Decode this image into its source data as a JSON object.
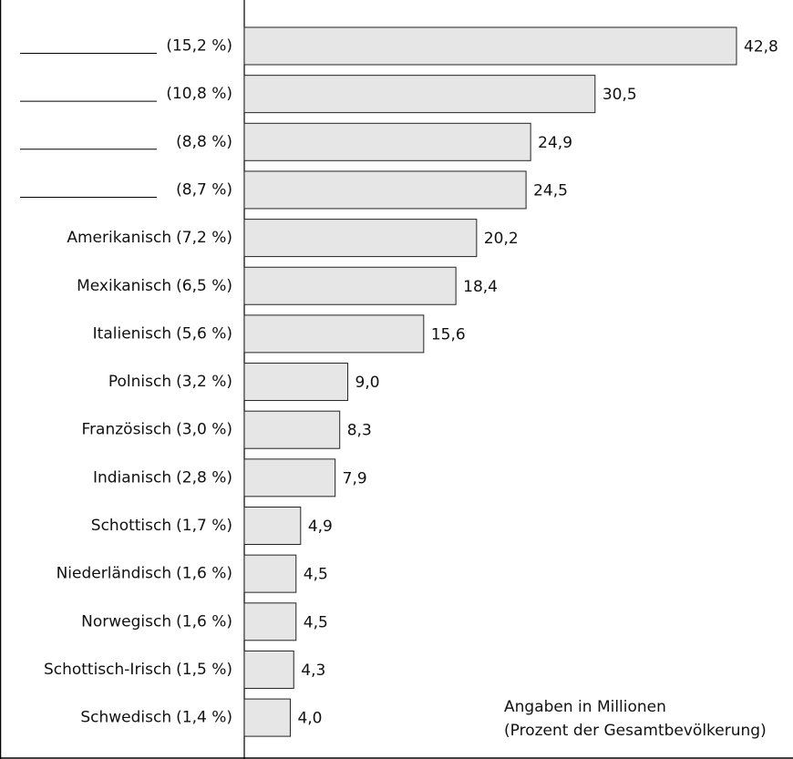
{
  "chart_data": {
    "type": "bar",
    "orientation": "horizontal",
    "color": "#e6e6e6",
    "names": [
      null,
      null,
      null,
      null,
      "Amerikanisch",
      "Mexikanisch",
      "Italienisch",
      "Polnisch",
      "Französisch",
      "Indianisch",
      "Schottisch",
      "Niederländisch",
      "Norwegisch",
      "Schottisch-Irisch",
      "Schwedisch"
    ],
    "shares": [
      "(15,2 %)",
      "(10,8 %)",
      "(8,8 %)",
      "(8,7 %)",
      "(7,2 %)",
      "(6,5 %)",
      "(5,6 %)",
      "(3,2 %)",
      "(3,0 %)",
      "(2,8 %)",
      "(1,7 %)",
      "(1,6 %)",
      "(1,6 %)",
      "(1,5 %)",
      "(1,4 %)"
    ],
    "values": [
      42.8,
      30.5,
      24.9,
      24.5,
      20.2,
      18.4,
      15.6,
      9.0,
      8.3,
      7.9,
      4.9,
      4.5,
      4.5,
      4.3,
      4.0
    ],
    "value_labels": [
      "42,8",
      "30,5",
      "24,9",
      "24,5",
      "20,2",
      "18,4",
      "15,6",
      "9,0",
      "8,3",
      "7,9",
      "4,9",
      "4,5",
      "4,5",
      "4,3",
      "4,0"
    ],
    "notes": [
      "Angaben in Millionen",
      "(Prozent der Gesamtbevölkerung)"
    ]
  }
}
